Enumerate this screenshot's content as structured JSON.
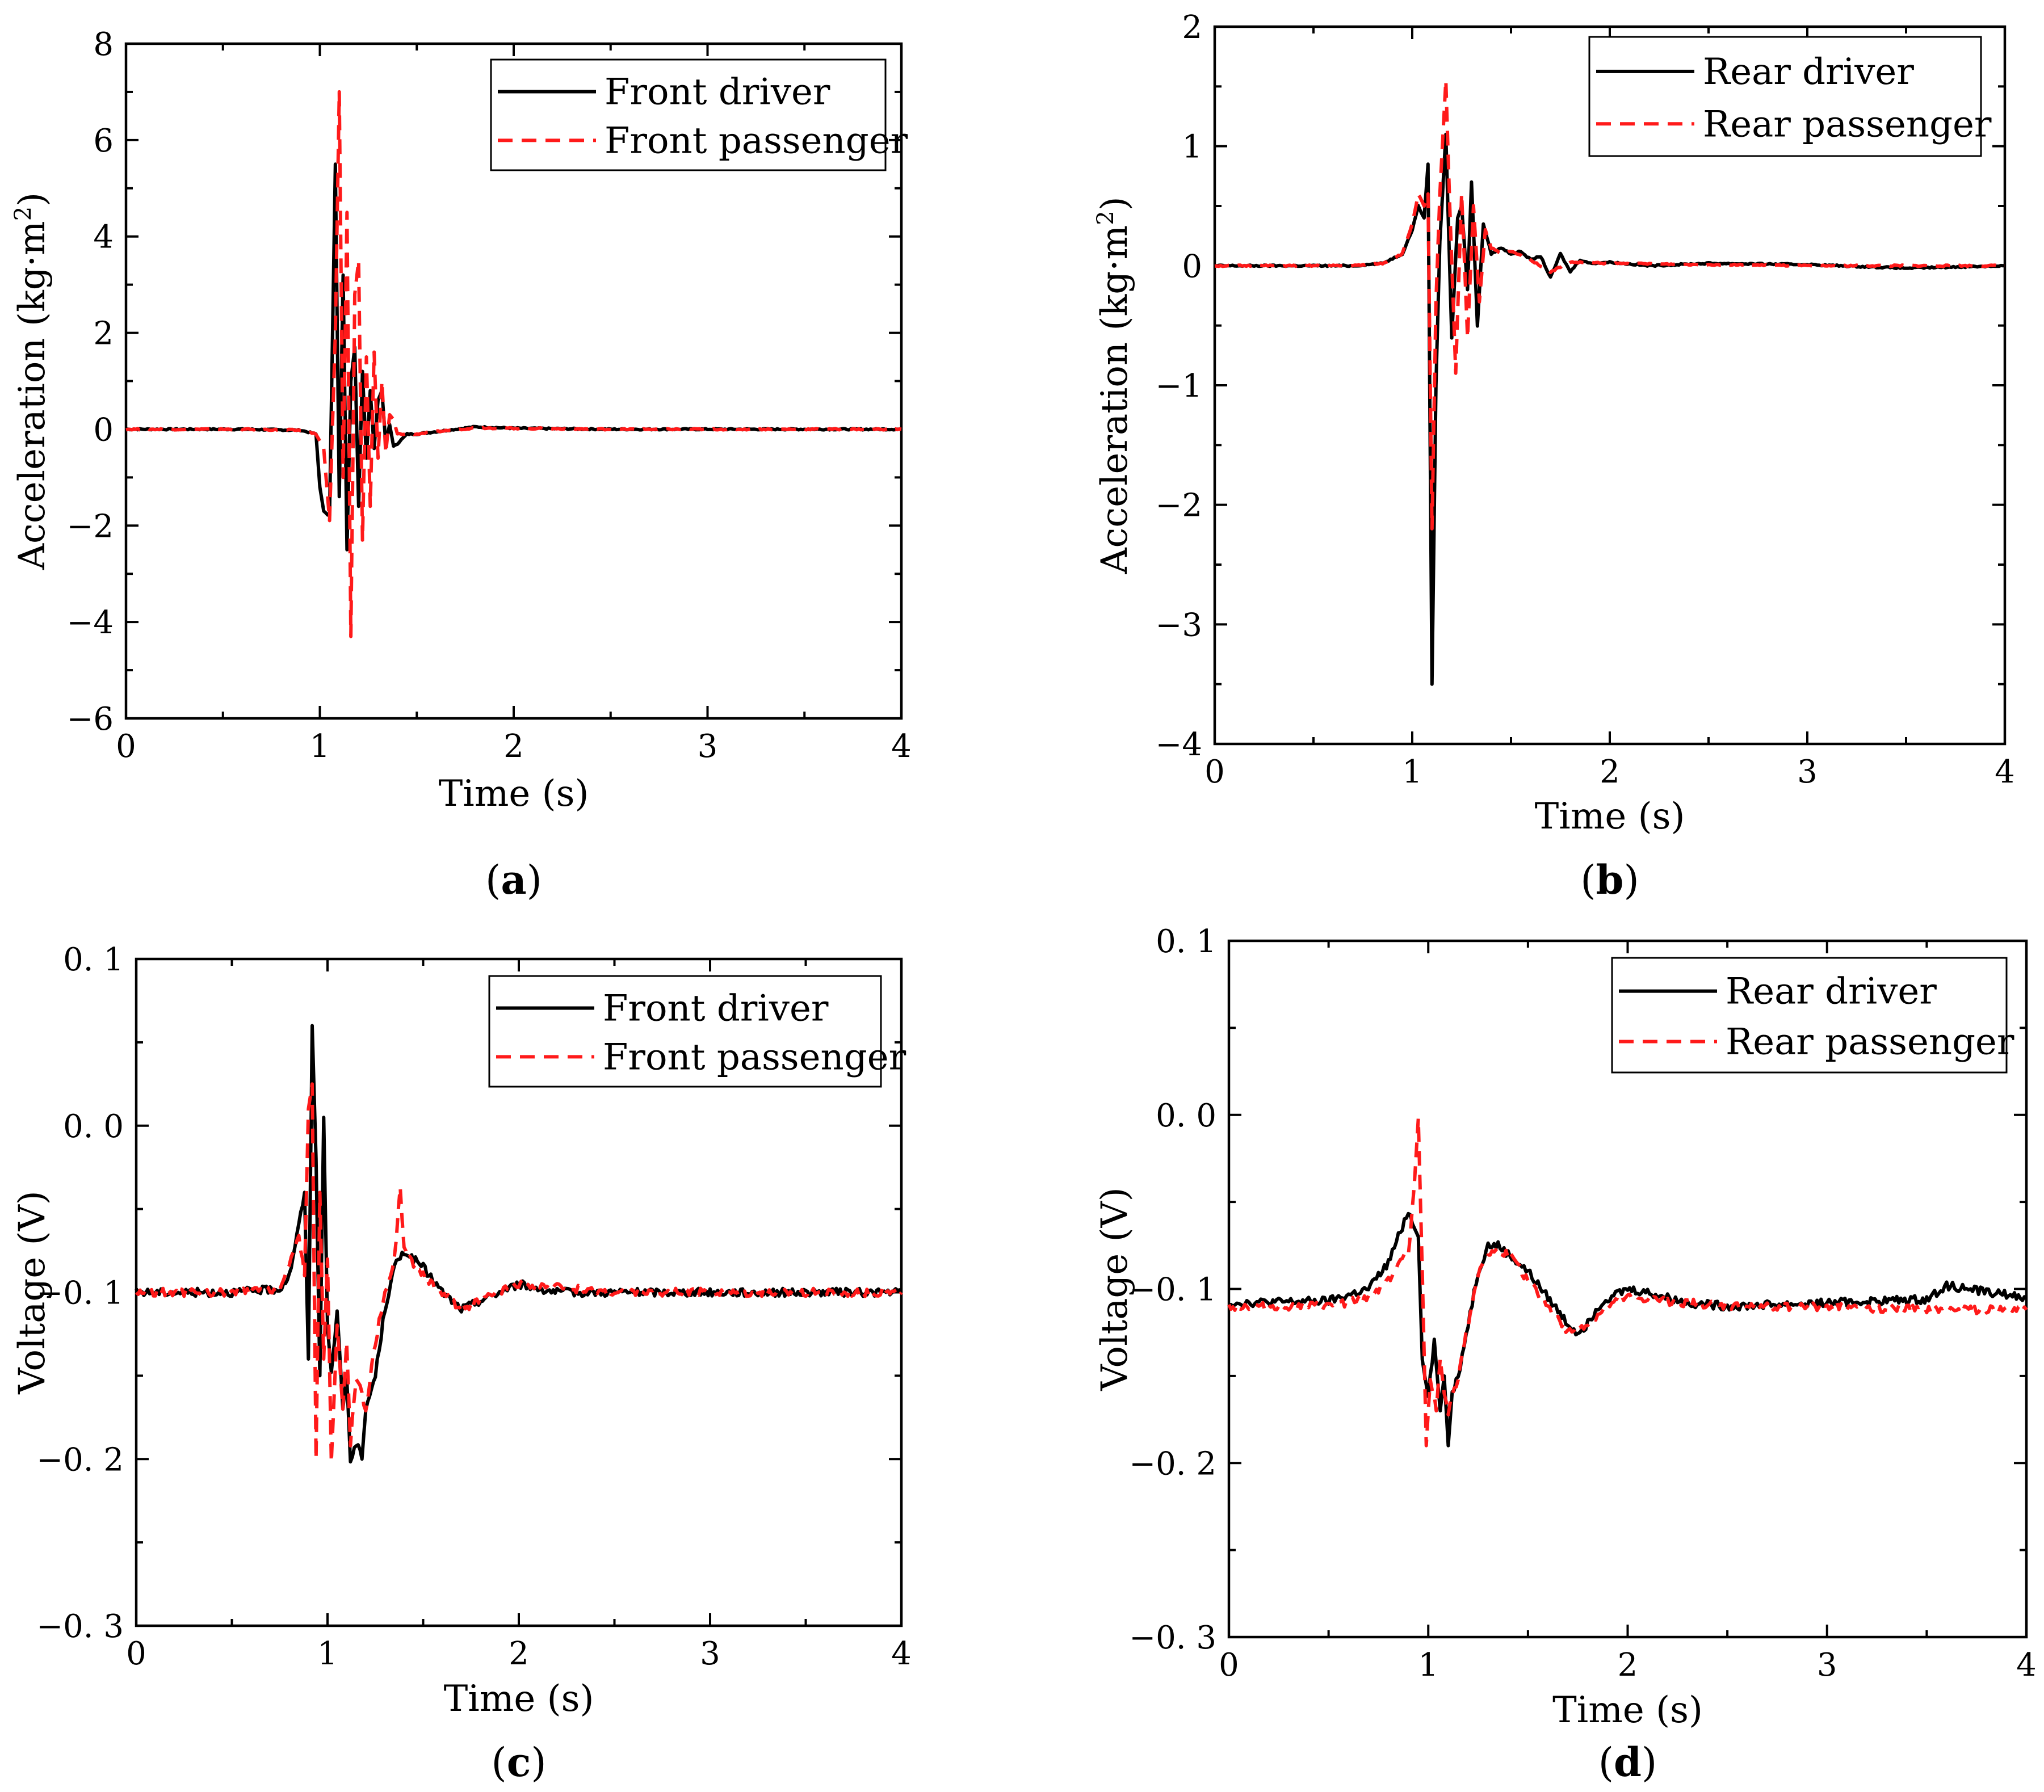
{
  "chart_data": [
    {
      "type": "line",
      "panel": "(a)",
      "panel_letter": "a",
      "xlabel": "Time (s)",
      "ylabel": "Acceleration (kg·m²)",
      "ylabel_base": "Acceleration (kg·m",
      "ylabel_sup": "2",
      "ylabel_tail": ")",
      "xlim": [
        0,
        4
      ],
      "ylim": [
        -6,
        8
      ],
      "xticks": [
        0,
        1,
        2,
        3,
        4
      ],
      "xtick_labels": [
        "0",
        "1",
        "2",
        "3",
        "4"
      ],
      "yticks": [
        -6,
        -4,
        -2,
        0,
        2,
        4,
        6,
        8
      ],
      "ytick_labels": [
        "−6",
        "−4",
        "−2",
        "0",
        "2",
        "4",
        "6",
        "8"
      ],
      "legend": "top-right",
      "series": [
        {
          "name": "Front driver",
          "style": "solid",
          "color": "#000000",
          "x": [
            0,
            0.6,
            0.9,
            0.98,
            1.0,
            1.02,
            1.05,
            1.08,
            1.1,
            1.12,
            1.14,
            1.16,
            1.18,
            1.2,
            1.22,
            1.24,
            1.26,
            1.28,
            1.3,
            1.32,
            1.34,
            1.36,
            1.38,
            1.4,
            1.45,
            1.5,
            1.6,
            1.8,
            2.0,
            2.5,
            3.0,
            3.5,
            4.0
          ],
          "values": [
            0,
            0,
            -0.02,
            -0.1,
            -1.2,
            -1.7,
            -1.8,
            5.5,
            -1.4,
            3.2,
            -2.5,
            1.0,
            1.7,
            -1.6,
            1.2,
            -0.6,
            0.8,
            -0.4,
            0.6,
            0.8,
            -0.3,
            0.1,
            -0.35,
            -0.3,
            -0.1,
            -0.1,
            -0.05,
            0.05,
            0.02,
            0,
            0,
            0,
            0
          ]
        },
        {
          "name": "Front passenger",
          "style": "dashed",
          "color": "#ff1a1a",
          "x": [
            0,
            0.6,
            0.9,
            0.98,
            1.02,
            1.05,
            1.08,
            1.1,
            1.12,
            1.14,
            1.16,
            1.18,
            1.2,
            1.22,
            1.24,
            1.26,
            1.28,
            1.3,
            1.32,
            1.34,
            1.36,
            1.38,
            1.4,
            1.5,
            1.6,
            1.8,
            2.0,
            2.5,
            3.0,
            3.5,
            4.0
          ],
          "values": [
            0,
            0,
            -0.02,
            -0.1,
            -0.4,
            -1.9,
            2.0,
            7.0,
            -1.0,
            4.5,
            -4.3,
            2.8,
            3.5,
            -2.3,
            1.5,
            -1.6,
            1.6,
            -0.6,
            1.0,
            -0.5,
            0.3,
            0.2,
            -0.1,
            -0.1,
            -0.05,
            0.03,
            0.02,
            0,
            0,
            0,
            0
          ]
        }
      ]
    },
    {
      "type": "line",
      "panel": "(b)",
      "panel_letter": "b",
      "xlabel": "Time (s)",
      "ylabel": "Acceleration (kg·m²)",
      "ylabel_base": "Acceleration (kg·m",
      "ylabel_sup": "2",
      "ylabel_tail": ")",
      "xlim": [
        0,
        4
      ],
      "ylim": [
        -4,
        2
      ],
      "xticks": [
        0,
        1,
        2,
        3,
        4
      ],
      "xtick_labels": [
        "0",
        "1",
        "2",
        "3",
        "4"
      ],
      "yticks": [
        -4,
        -3,
        -2,
        -1,
        0,
        1,
        2
      ],
      "ytick_labels": [
        "−4",
        "−3",
        "−2",
        "−1",
        "0",
        "1",
        "2"
      ],
      "legend": "top-right",
      "series": [
        {
          "name": "Rear driver",
          "style": "solid",
          "color": "#000000",
          "x": [
            0,
            0.7,
            0.85,
            0.95,
            1.0,
            1.03,
            1.06,
            1.08,
            1.1,
            1.12,
            1.14,
            1.17,
            1.2,
            1.23,
            1.25,
            1.28,
            1.3,
            1.33,
            1.36,
            1.4,
            1.45,
            1.5,
            1.55,
            1.6,
            1.65,
            1.7,
            1.75,
            1.8,
            1.85,
            1.9,
            2.0,
            2.2,
            2.5,
            3.0,
            3.5,
            4.0
          ],
          "values": [
            0,
            0,
            0.02,
            0.1,
            0.3,
            0.5,
            0.4,
            0.85,
            -3.5,
            -1.0,
            0.2,
            1.1,
            -0.6,
            0.4,
            0.5,
            -0.2,
            0.7,
            -0.5,
            0.35,
            0.1,
            0.15,
            0.1,
            0.12,
            0.05,
            0.08,
            -0.1,
            0.1,
            -0.05,
            0.05,
            0.02,
            0.03,
            0.0,
            0.02,
            0.01,
            -0.02,
            0.0
          ]
        },
        {
          "name": "Rear passenger",
          "style": "dashed",
          "color": "#ff1a1a",
          "x": [
            0,
            0.7,
            0.85,
            0.95,
            1.0,
            1.03,
            1.06,
            1.08,
            1.1,
            1.12,
            1.14,
            1.17,
            1.19,
            1.22,
            1.25,
            1.28,
            1.31,
            1.34,
            1.37,
            1.4,
            1.45,
            1.5,
            1.6,
            1.7,
            1.8,
            2.0,
            2.5,
            3.0,
            3.5,
            4.0
          ],
          "values": [
            0,
            0,
            0.02,
            0.1,
            0.35,
            0.6,
            0.5,
            0.6,
            -2.2,
            -0.3,
            0.6,
            1.55,
            0.5,
            -0.9,
            0.6,
            -0.6,
            0.5,
            -0.3,
            0.3,
            0.15,
            0.1,
            0.12,
            0.05,
            -0.05,
            0.03,
            0.02,
            0.01,
            0.0,
            0.0,
            0.0
          ]
        }
      ]
    },
    {
      "type": "line",
      "panel": "(c)",
      "panel_letter": "c",
      "xlabel": "Time (s)",
      "ylabel": "Voltage (V)",
      "xlim": [
        0,
        4
      ],
      "ylim": [
        -0.3,
        0.1
      ],
      "xticks": [
        0,
        1,
        2,
        3,
        4
      ],
      "xtick_labels": [
        "0",
        "1",
        "2",
        "3",
        "4"
      ],
      "yticks": [
        -0.3,
        -0.2,
        -0.1,
        0.0,
        0.1
      ],
      "ytick_labels": [
        "−0. 3",
        "−0. 2",
        "−0. 1",
        "0. 0",
        "0. 1"
      ],
      "legend": "top-right",
      "series": [
        {
          "name": "Front driver",
          "style": "solid",
          "color": "#000000",
          "x": [
            0,
            0.5,
            0.75,
            0.8,
            0.85,
            0.88,
            0.9,
            0.92,
            0.94,
            0.96,
            0.98,
            1.0,
            1.02,
            1.05,
            1.08,
            1.1,
            1.12,
            1.15,
            1.18,
            1.2,
            1.25,
            1.3,
            1.35,
            1.4,
            1.5,
            1.6,
            1.7,
            1.8,
            1.9,
            2.0,
            2.2,
            2.5,
            3.0,
            3.5,
            4.0
          ],
          "values": [
            -0.1,
            -0.1,
            -0.098,
            -0.09,
            -0.06,
            -0.04,
            -0.14,
            0.06,
            -0.02,
            -0.15,
            0.005,
            -0.12,
            -0.15,
            -0.11,
            -0.17,
            -0.15,
            -0.2,
            -0.19,
            -0.2,
            -0.17,
            -0.15,
            -0.11,
            -0.085,
            -0.075,
            -0.085,
            -0.1,
            -0.11,
            -0.105,
            -0.1,
            -0.095,
            -0.1,
            -0.1,
            -0.1,
            -0.1,
            -0.1
          ]
        },
        {
          "name": "Front passenger",
          "style": "dashed",
          "color": "#ff1a1a",
          "x": [
            0,
            0.5,
            0.75,
            0.8,
            0.85,
            0.88,
            0.9,
            0.92,
            0.94,
            0.96,
            0.98,
            1.0,
            1.02,
            1.05,
            1.08,
            1.1,
            1.12,
            1.15,
            1.2,
            1.25,
            1.3,
            1.35,
            1.38,
            1.4,
            1.5,
            1.6,
            1.7,
            1.8,
            1.9,
            2.0,
            2.5,
            3.0,
            3.5,
            4.0
          ],
          "values": [
            -0.1,
            -0.1,
            -0.098,
            -0.085,
            -0.065,
            -0.09,
            0.01,
            0.025,
            -0.2,
            -0.04,
            -0.14,
            -0.08,
            -0.2,
            -0.12,
            -0.17,
            -0.13,
            -0.19,
            -0.15,
            -0.17,
            -0.13,
            -0.1,
            -0.08,
            -0.037,
            -0.075,
            -0.09,
            -0.1,
            -0.11,
            -0.105,
            -0.1,
            -0.095,
            -0.1,
            -0.1,
            -0.1,
            -0.1
          ]
        }
      ]
    },
    {
      "type": "line",
      "panel": "(d)",
      "panel_letter": "d",
      "xlabel": "Time (s)",
      "ylabel": "Voltage (V)",
      "xlim": [
        0,
        4
      ],
      "ylim": [
        -0.3,
        0.1
      ],
      "xticks": [
        0,
        1,
        2,
        3,
        4
      ],
      "xtick_labels": [
        "0",
        "1",
        "2",
        "3",
        "4"
      ],
      "yticks": [
        -0.3,
        -0.2,
        -0.1,
        0.0,
        0.1
      ],
      "ytick_labels": [
        "−0. 3",
        "−0. 2",
        "−0. 1",
        "0. 0",
        "0. 1"
      ],
      "legend": "top-right",
      "series": [
        {
          "name": "Rear driver",
          "style": "solid",
          "color": "#000000",
          "x": [
            0,
            0.5,
            0.7,
            0.8,
            0.85,
            0.9,
            0.93,
            0.95,
            0.97,
            1.0,
            1.03,
            1.06,
            1.08,
            1.1,
            1.12,
            1.15,
            1.2,
            1.25,
            1.3,
            1.35,
            1.4,
            1.5,
            1.6,
            1.7,
            1.75,
            1.8,
            1.85,
            1.9,
            2.0,
            2.1,
            2.3,
            2.5,
            3.0,
            3.5,
            3.6,
            4.0
          ],
          "values": [
            -0.108,
            -0.107,
            -0.1,
            -0.085,
            -0.07,
            -0.055,
            -0.065,
            -0.07,
            -0.14,
            -0.16,
            -0.13,
            -0.17,
            -0.15,
            -0.19,
            -0.16,
            -0.15,
            -0.12,
            -0.09,
            -0.075,
            -0.075,
            -0.08,
            -0.09,
            -0.105,
            -0.12,
            -0.125,
            -0.12,
            -0.11,
            -0.105,
            -0.1,
            -0.102,
            -0.108,
            -0.11,
            -0.108,
            -0.106,
            -0.098,
            -0.105
          ]
        },
        {
          "name": "Rear passenger",
          "style": "dashed",
          "color": "#ff1a1a",
          "x": [
            0,
            0.5,
            0.7,
            0.8,
            0.85,
            0.9,
            0.93,
            0.95,
            0.97,
            0.99,
            1.01,
            1.04,
            1.06,
            1.08,
            1.1,
            1.15,
            1.2,
            1.25,
            1.3,
            1.35,
            1.4,
            1.5,
            1.6,
            1.7,
            1.8,
            1.9,
            2.0,
            2.5,
            3.0,
            3.5,
            4.0
          ],
          "values": [
            -0.11,
            -0.11,
            -0.105,
            -0.095,
            -0.085,
            -0.08,
            -0.04,
            -0.002,
            -0.09,
            -0.19,
            -0.15,
            -0.17,
            -0.14,
            -0.16,
            -0.17,
            -0.15,
            -0.12,
            -0.09,
            -0.08,
            -0.078,
            -0.08,
            -0.095,
            -0.11,
            -0.125,
            -0.12,
            -0.11,
            -0.105,
            -0.11,
            -0.11,
            -0.112,
            -0.112
          ]
        }
      ]
    }
  ]
}
